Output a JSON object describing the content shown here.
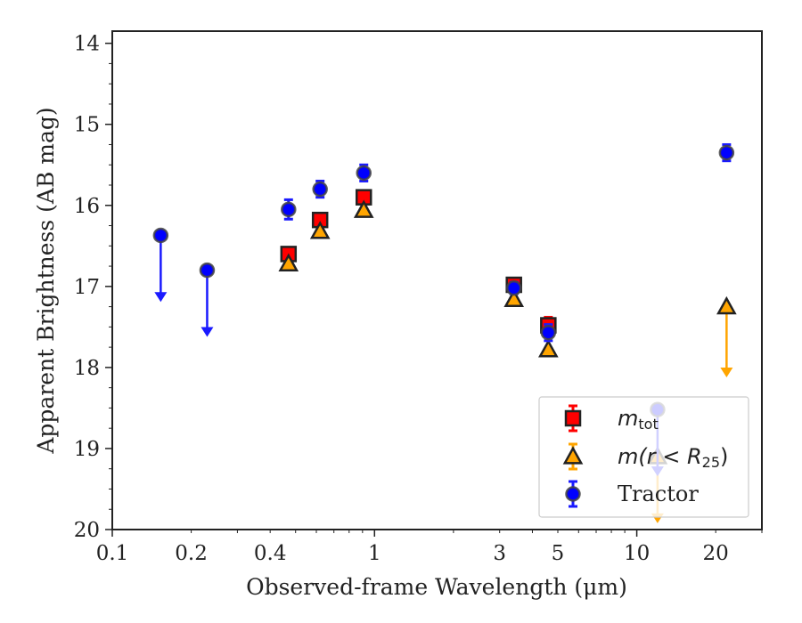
{
  "chart_data": {
    "type": "scatter",
    "xlabel": "Observed-frame Wavelength (μm)",
    "ylabel": "Apparent Brightness (AB mag)",
    "xscale": "log",
    "xlim": [
      0.1,
      30
    ],
    "ylim": [
      20,
      13.85
    ],
    "y_inverted": true,
    "x_ticks": [
      0.1,
      0.2,
      0.4,
      1,
      3,
      5,
      10,
      20
    ],
    "x_tick_labels": [
      "0.1",
      "0.2",
      "0.4",
      "1",
      "3",
      "5",
      "10",
      "20"
    ],
    "y_ticks": [
      14,
      15,
      16,
      17,
      18,
      19,
      20
    ],
    "y_tick_labels": [
      "14",
      "15",
      "16",
      "17",
      "18",
      "19",
      "20"
    ],
    "legend": {
      "placement": "lower-right",
      "entries": [
        {
          "series": "m_tot",
          "label": "m",
          "subscript": "tot"
        },
        {
          "series": "m_r25",
          "label": "m(r < R",
          "subscript": "25",
          "suffix": ")"
        },
        {
          "series": "tractor",
          "label": "Tractor"
        }
      ]
    },
    "series": [
      {
        "key": "m_tot",
        "name": "m_tot",
        "marker": "square",
        "color": "#ff0000",
        "edge_color": "#222222",
        "err_color": "#ff0000",
        "points": [
          {
            "x": 0.47,
            "y": 16.6,
            "err": 0.08
          },
          {
            "x": 0.62,
            "y": 16.18,
            "err": 0.08
          },
          {
            "x": 0.91,
            "y": 15.9,
            "err": 0.08
          },
          {
            "x": 3.4,
            "y": 16.98,
            "err": 0.08
          },
          {
            "x": 4.6,
            "y": 17.48,
            "err": 0.1
          }
        ]
      },
      {
        "key": "m_r25",
        "name": "m(r < R25)",
        "marker": "triangle",
        "color": "#ffa500",
        "edge_color": "#222222",
        "err_color": "#ffa500",
        "points": [
          {
            "x": 0.47,
            "y": 16.72
          },
          {
            "x": 0.62,
            "y": 16.32
          },
          {
            "x": 0.91,
            "y": 16.06
          },
          {
            "x": 3.4,
            "y": 17.16
          },
          {
            "x": 4.6,
            "y": 17.78
          },
          {
            "x": 12.0,
            "y": 19.1,
            "upper_limit": true,
            "arrow_len": 0.8
          },
          {
            "x": 22.0,
            "y": 17.25,
            "upper_limit": true,
            "arrow_len": 0.85
          }
        ]
      },
      {
        "key": "tractor",
        "name": "Tractor",
        "marker": "circle",
        "color": "#0000ff",
        "edge_color": "#444444",
        "err_color": "#1a1aff",
        "points": [
          {
            "x": 0.153,
            "y": 16.37,
            "upper_limit": true,
            "arrow_len": 0.8
          },
          {
            "x": 0.23,
            "y": 16.8,
            "upper_limit": true,
            "arrow_len": 0.8
          },
          {
            "x": 0.47,
            "y": 16.05,
            "err": 0.12
          },
          {
            "x": 0.62,
            "y": 15.8,
            "err": 0.1
          },
          {
            "x": 0.91,
            "y": 15.6,
            "err": 0.1
          },
          {
            "x": 3.4,
            "y": 17.02,
            "err": 0.07
          },
          {
            "x": 4.6,
            "y": 17.57,
            "err": 0.1
          },
          {
            "x": 12.0,
            "y": 18.52,
            "upper_limit": true,
            "arrow_len": 0.8
          },
          {
            "x": 22.0,
            "y": 15.35,
            "err": 0.1
          }
        ]
      }
    ]
  }
}
